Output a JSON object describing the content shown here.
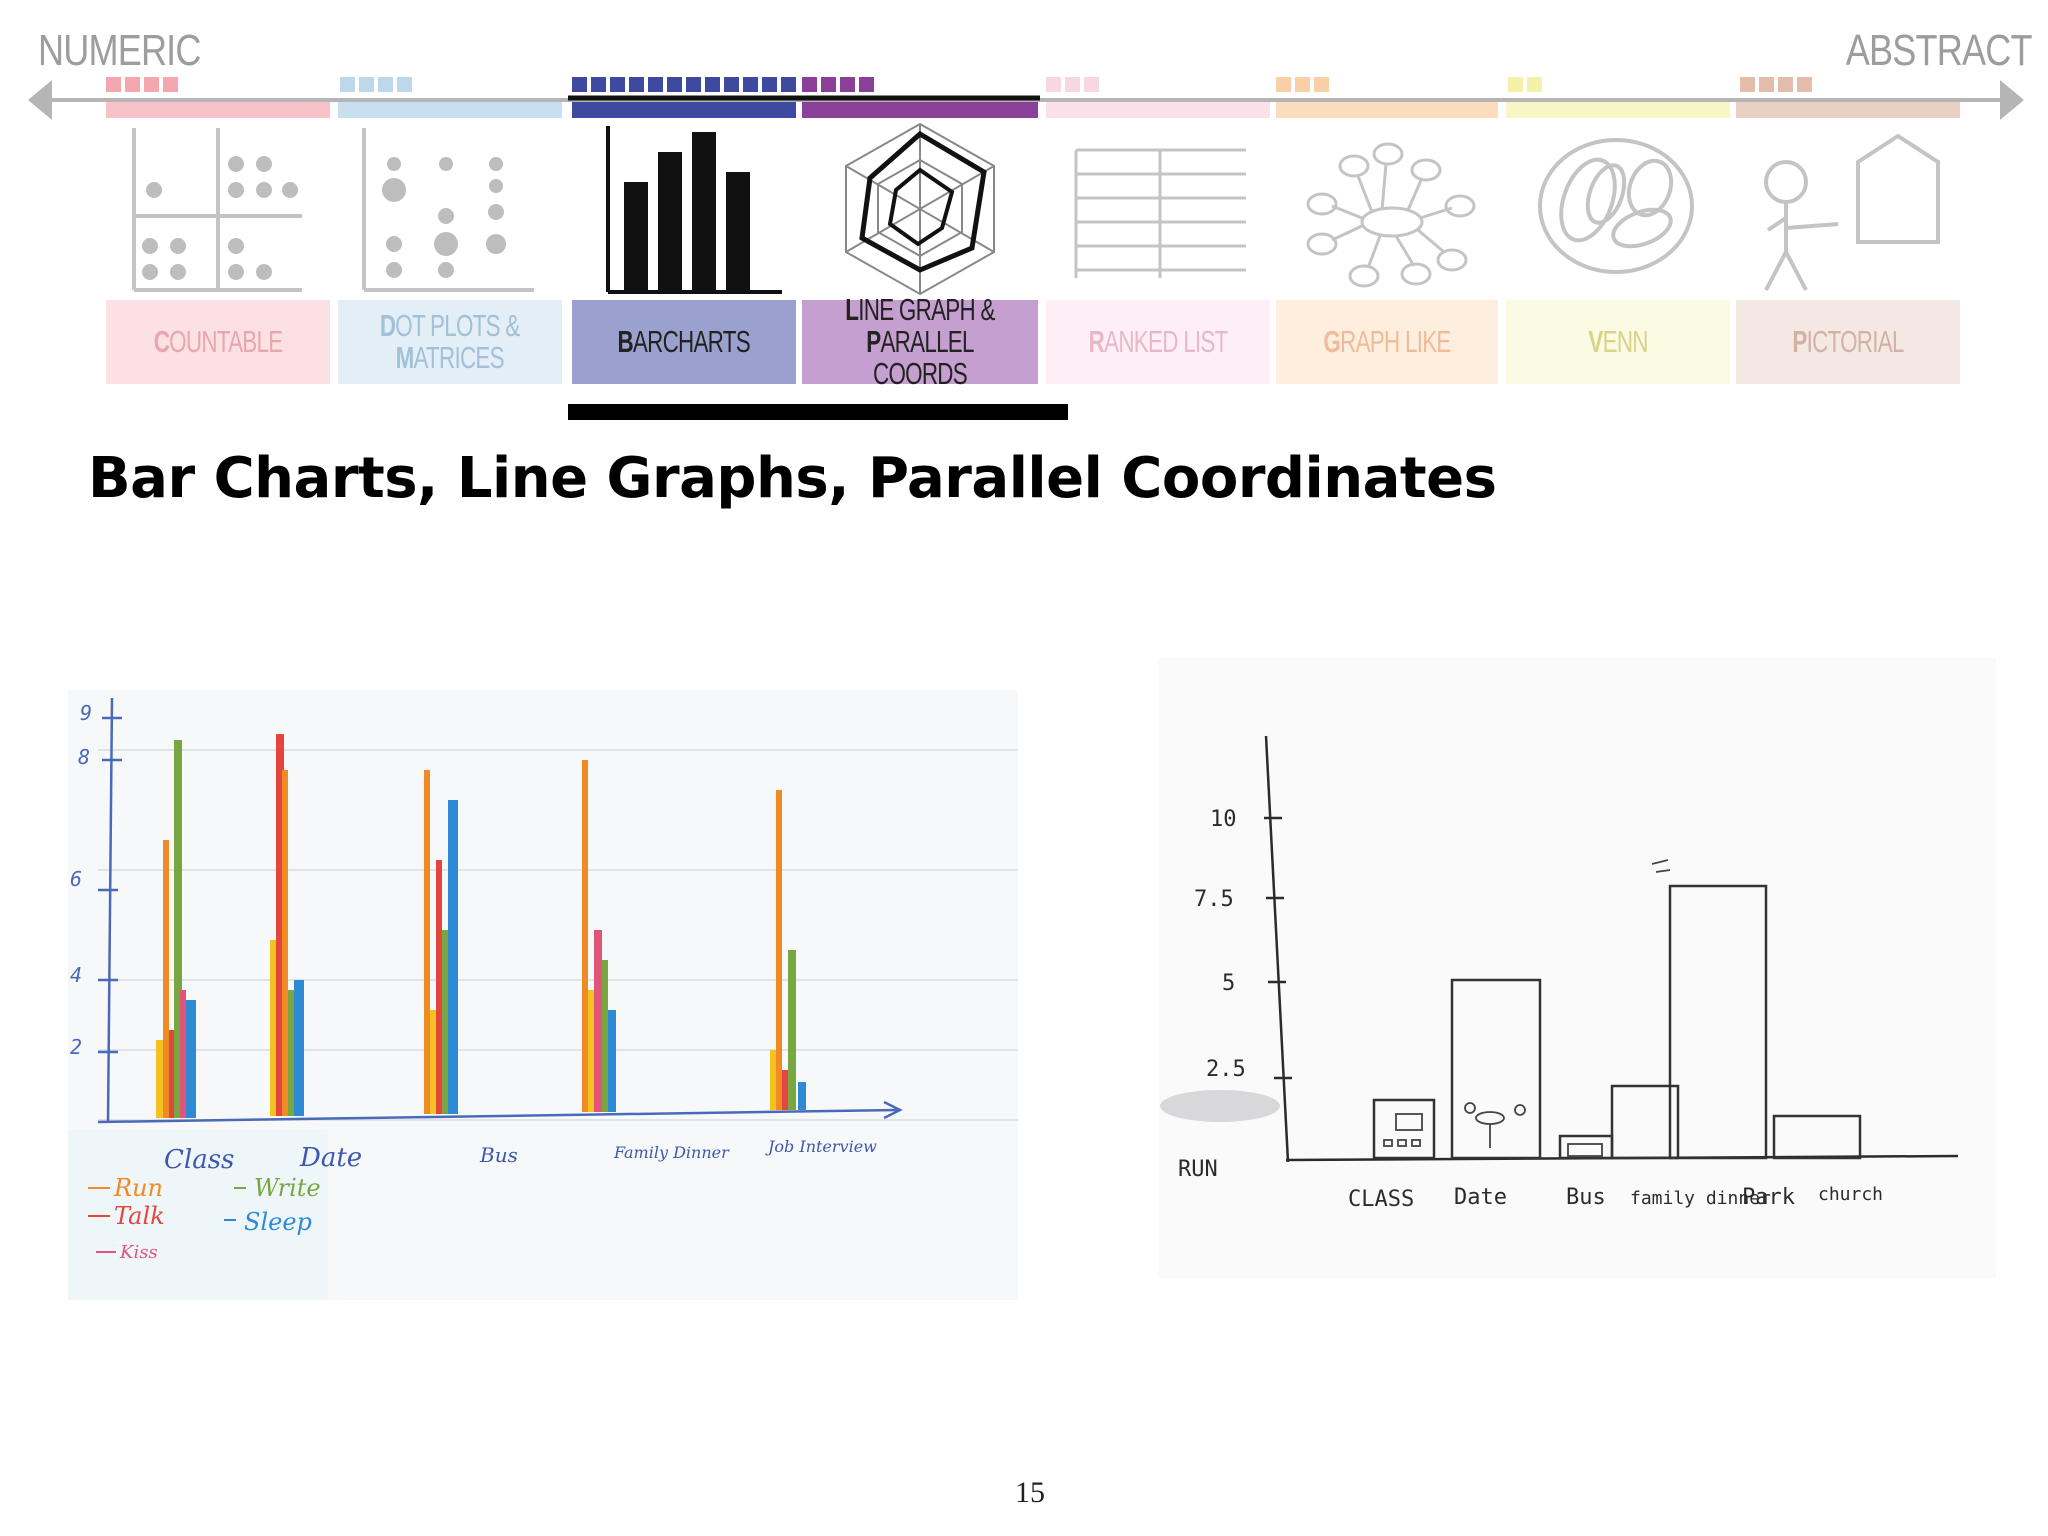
{
  "scale": {
    "left_label": "NUMERIC",
    "right_label": "ABSTRACT"
  },
  "categories": [
    {
      "id": "countable",
      "line1": "COUNTABLE",
      "line2": "",
      "color": "#f4a7ae",
      "highlighted": false,
      "icon": "countable-dots-quadrant-icon"
    },
    {
      "id": "dot-plots",
      "line1": "DOT PLOTS &",
      "line2": "MATRICES",
      "color": "#a9cde3",
      "highlighted": false,
      "icon": "dot-plot-matrix-icon"
    },
    {
      "id": "barcharts",
      "line1": "BARCHARTS",
      "line2": "",
      "color": "#3e4aa0",
      "highlighted": true,
      "icon": "bar-chart-icon"
    },
    {
      "id": "line-graph",
      "line1": "LINE GRAPH &",
      "line2": "PARALLEL COORDS",
      "color": "#8a3f99",
      "highlighted": true,
      "icon": "radar-chart-icon"
    },
    {
      "id": "ranked-list",
      "line1": "RANKED LIST",
      "line2": "",
      "color": "#f6bcd3",
      "highlighted": false,
      "icon": "ranked-list-table-icon"
    },
    {
      "id": "graph-like",
      "line1": "GRAPH LIKE",
      "line2": "",
      "color": "#f7c48d",
      "highlighted": false,
      "icon": "node-graph-icon"
    },
    {
      "id": "venn",
      "line1": "VENN",
      "line2": "",
      "color": "#f2ee9b",
      "highlighted": false,
      "icon": "venn-diagram-icon"
    },
    {
      "id": "pictorial",
      "line1": "PICTORIAL",
      "line2": "",
      "color": "#d9b09d",
      "highlighted": false,
      "icon": "stick-figure-house-icon"
    }
  ],
  "slide_title": "Bar Charts, Line Graphs, Parallel Coordinates",
  "page_number": "15",
  "sketch_left": {
    "y_ticks": [
      "9",
      "8",
      "6",
      "4",
      "2"
    ],
    "x_labels": [
      "Class",
      "Date",
      "Bus",
      "Family Dinner",
      "Job Interview"
    ],
    "legend": [
      {
        "label": "Run",
        "color": "#f08a24"
      },
      {
        "label": "Talk",
        "color": "#e3463c"
      },
      {
        "label": "Kiss",
        "color": "#e0567a"
      },
      {
        "label": "Write",
        "color": "#78a640"
      },
      {
        "label": "Sleep",
        "color": "#2f8ad6"
      }
    ]
  },
  "sketch_right": {
    "y_ticks": [
      "10",
      "7.5",
      "5",
      "2.5"
    ],
    "y_axis_label": "RUN",
    "x_labels": [
      "CLASS",
      "Date",
      "Bus",
      "family dinner",
      "Park",
      "church"
    ]
  }
}
